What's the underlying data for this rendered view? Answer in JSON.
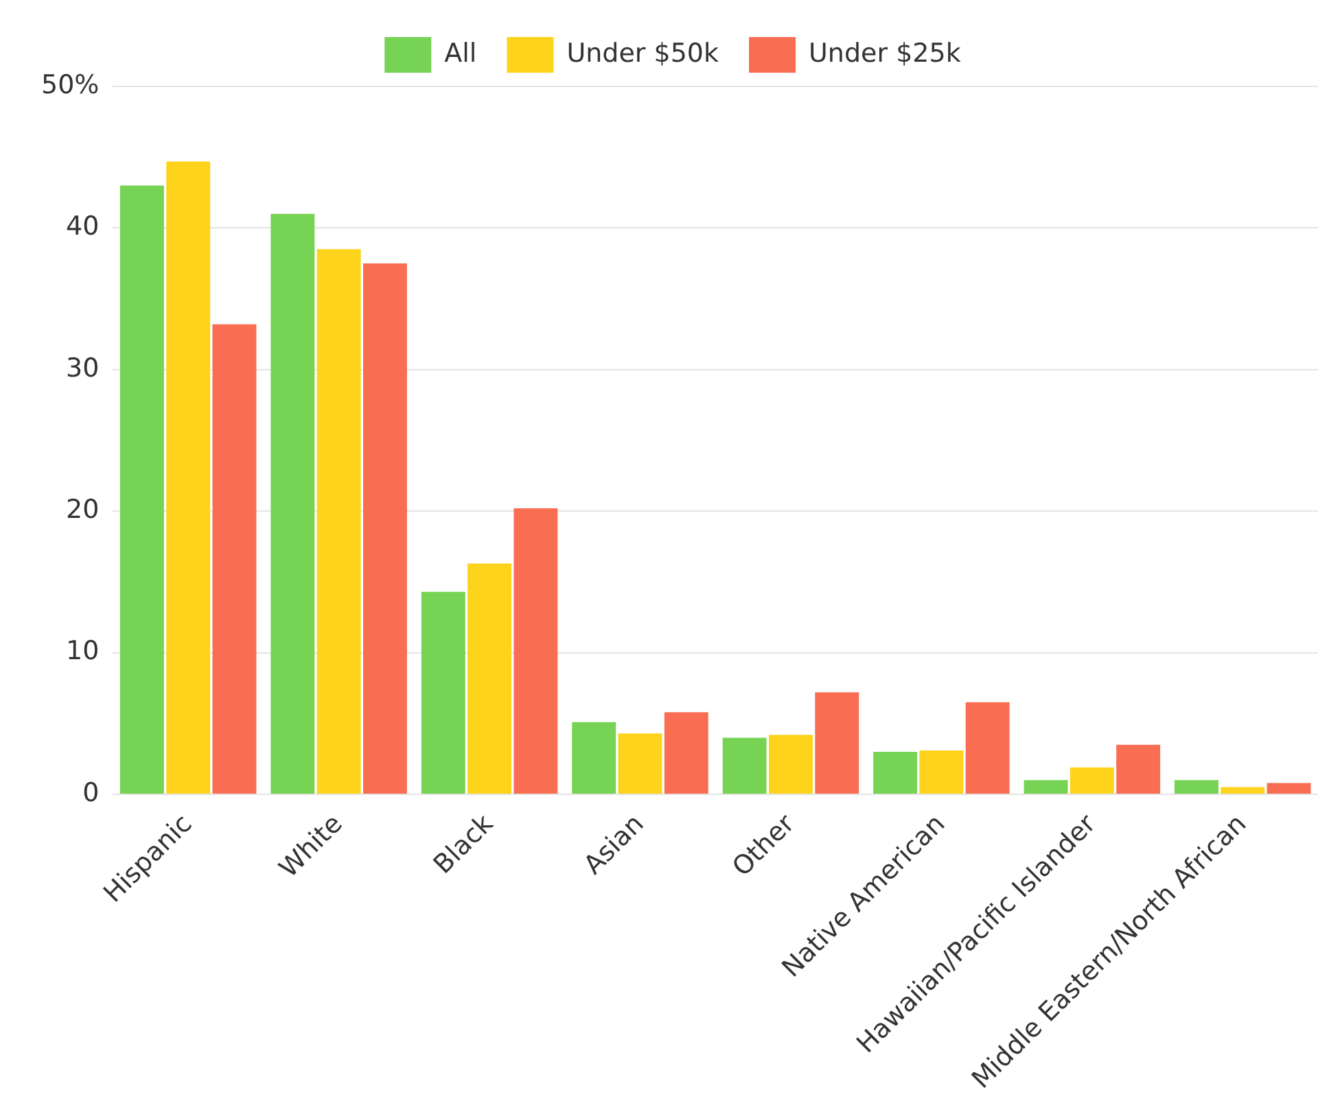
{
  "chart_data": {
    "type": "bar",
    "categories": [
      "Hispanic",
      "White",
      "Black",
      "Asian",
      "Other",
      "Native American",
      "Hawaiian/Pacific Islander",
      "Middle Eastern/North African"
    ],
    "series": [
      {
        "name": "All",
        "color": "#77d353",
        "values": [
          43.0,
          41.0,
          14.3,
          5.1,
          4.0,
          3.0,
          1.0,
          1.0
        ]
      },
      {
        "name": "Under $50k",
        "color": "#fdd31c",
        "values": [
          44.7,
          38.5,
          16.3,
          4.3,
          4.2,
          3.1,
          1.9,
          0.5
        ]
      },
      {
        "name": "Under $25k",
        "color": "#f96e53",
        "values": [
          33.2,
          37.5,
          20.2,
          5.8,
          7.2,
          6.5,
          3.5,
          0.8
        ]
      }
    ],
    "ylim": [
      0,
      50
    ],
    "yticks": [
      0,
      10,
      20,
      30,
      40,
      {
        "value": 50,
        "label": "50%"
      }
    ],
    "grid": "y",
    "legend": "top"
  }
}
